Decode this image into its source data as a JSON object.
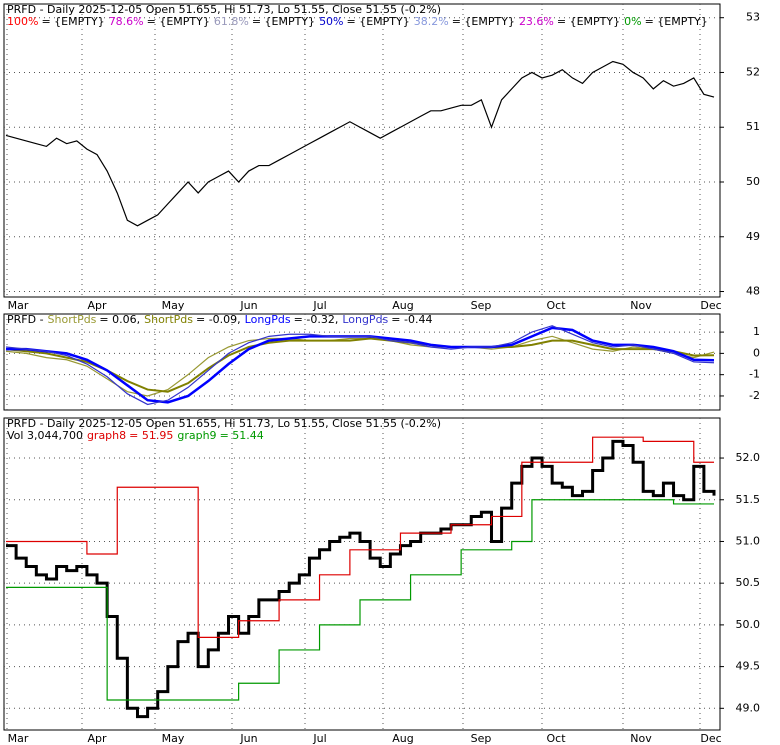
{
  "chart_data": [
    {
      "type": "line",
      "title": "PRFD - Daily 2025-12-05 Open 51.655, Hi 51.73, Lo 51.55, Close 51.55 (-0.2%)",
      "levels": [
        {
          "name": "100%",
          "label": "= {EMPTY}",
          "color": "#ff0000"
        },
        {
          "name": "78.6%",
          "label": "= {EMPTY}",
          "color": "#cc00cc"
        },
        {
          "name": "61.8%",
          "label": "= {EMPTY}",
          "color": "#9999bb"
        },
        {
          "name": "50%",
          "label": "= {EMPTY}",
          "color": "#0000cc"
        },
        {
          "name": "38.2%",
          "label": "= {EMPTY}",
          "color": "#8899dd"
        },
        {
          "name": "23.6%",
          "label": "= {EMPTY}",
          "color": "#cc00cc"
        },
        {
          "name": "0%",
          "label": "= {EMPTY}",
          "color": "#009900"
        }
      ],
      "x_labels": [
        "Mar",
        "Apr",
        "May",
        "Jun",
        "Jul",
        "Aug",
        "Sep",
        "Oct",
        "Nov",
        "Dec"
      ],
      "series": [
        {
          "color": "#000000",
          "values": [
            50.85,
            50.8,
            50.75,
            50.7,
            50.65,
            50.8,
            50.7,
            50.75,
            50.6,
            50.5,
            50.2,
            49.8,
            49.3,
            49.2,
            49.3,
            49.4,
            49.6,
            49.8,
            50.0,
            49.8,
            50.0,
            50.1,
            50.2,
            50.0,
            50.2,
            50.3,
            50.3,
            50.4,
            50.5,
            50.6,
            50.7,
            50.8,
            50.9,
            51.0,
            51.1,
            51.0,
            50.9,
            50.8,
            50.9,
            51.0,
            51.1,
            51.2,
            51.3,
            51.3,
            51.35,
            51.4,
            51.4,
            51.5,
            51.0,
            51.5,
            51.7,
            51.9,
            52.0,
            51.9,
            51.95,
            52.05,
            51.9,
            51.8,
            52.0,
            52.1,
            52.2,
            52.15,
            52.0,
            51.9,
            51.7,
            51.85,
            51.75,
            51.8,
            51.9,
            51.6,
            51.55
          ]
        }
      ],
      "ylim": [
        47.9,
        53.25
      ],
      "yticks": [
        48,
        49,
        50,
        51,
        52,
        53
      ],
      "grid": true
    },
    {
      "type": "line",
      "title": "PRFD -",
      "series": [
        {
          "name": "ShortPds",
          "label": "= 0.06,",
          "color": "#999933",
          "values": [
            0.1,
            0.0,
            -0.2,
            -0.3,
            -0.6,
            -1.2,
            -1.8,
            -2.0,
            -1.7,
            -1.0,
            -0.2,
            0.3,
            0.6,
            0.7,
            0.7,
            0.6,
            0.6,
            0.7,
            0.7,
            0.6,
            0.4,
            0.3,
            0.3,
            0.3,
            0.2,
            0.3,
            0.6,
            0.8,
            0.5,
            0.2,
            0.1,
            0.3,
            0.2,
            0.0,
            -0.2,
            0.06
          ]
        },
        {
          "name": "ShortPds",
          "label": "= -0.09,",
          "color": "#808000",
          "values": [
            0.2,
            0.1,
            0.0,
            -0.2,
            -0.4,
            -0.8,
            -1.3,
            -1.7,
            -1.8,
            -1.4,
            -0.7,
            -0.1,
            0.3,
            0.5,
            0.6,
            0.6,
            0.6,
            0.6,
            0.7,
            0.6,
            0.5,
            0.4,
            0.3,
            0.3,
            0.3,
            0.3,
            0.4,
            0.6,
            0.6,
            0.4,
            0.2,
            0.2,
            0.2,
            0.1,
            -0.1,
            -0.09
          ]
        },
        {
          "name": "LongPds",
          "label": "= -0.32,",
          "color": "#0000ff",
          "values": [
            0.2,
            0.2,
            0.1,
            0.0,
            -0.3,
            -0.8,
            -1.5,
            -2.2,
            -2.3,
            -2.0,
            -1.3,
            -0.5,
            0.2,
            0.6,
            0.7,
            0.8,
            0.8,
            0.8,
            0.8,
            0.7,
            0.6,
            0.4,
            0.3,
            0.3,
            0.3,
            0.4,
            0.8,
            1.2,
            1.1,
            0.6,
            0.4,
            0.4,
            0.3,
            0.1,
            -0.3,
            -0.32
          ]
        },
        {
          "name": "LongPds",
          "label": "= -0.44",
          "color": "#3333cc",
          "values": [
            0.3,
            0.2,
            0.1,
            -0.1,
            -0.5,
            -1.1,
            -1.9,
            -2.4,
            -2.2,
            -1.6,
            -0.8,
            0.0,
            0.5,
            0.8,
            0.9,
            0.9,
            0.8,
            0.8,
            0.8,
            0.6,
            0.5,
            0.3,
            0.2,
            0.3,
            0.3,
            0.5,
            1.0,
            1.3,
            0.9,
            0.5,
            0.3,
            0.4,
            0.2,
            0.0,
            -0.4,
            -0.44
          ]
        }
      ],
      "ylim": [
        -2.66,
        1.85
      ],
      "yticks": [
        1,
        0,
        -1,
        -2
      ],
      "grid": true
    },
    {
      "type": "line",
      "step": true,
      "title": "PRFD - Daily 2025-12-05 Open 51.655, Hi 51.73, Lo 51.55, Close 51.55 (-0.2%)",
      "volume_label": "Vol 3,044,700",
      "x_labels": [
        "Mar",
        "Apr",
        "May",
        "Jun",
        "Jul",
        "Aug",
        "Sep",
        "Oct",
        "Nov",
        "Dec"
      ],
      "series": [
        {
          "color": "#000000",
          "values": [
            50.95,
            50.8,
            50.7,
            50.6,
            50.55,
            50.7,
            50.65,
            50.7,
            50.6,
            50.5,
            50.1,
            49.6,
            49.0,
            48.9,
            49.0,
            49.2,
            49.5,
            49.8,
            49.9,
            49.5,
            49.7,
            49.9,
            50.1,
            49.9,
            50.1,
            50.3,
            50.3,
            50.4,
            50.5,
            50.6,
            50.8,
            50.9,
            51.0,
            51.05,
            51.1,
            51.0,
            50.8,
            50.7,
            50.85,
            50.95,
            51.0,
            51.1,
            51.1,
            51.15,
            51.2,
            51.2,
            51.3,
            51.35,
            51.0,
            51.4,
            51.7,
            51.9,
            52.0,
            51.9,
            51.7,
            51.65,
            51.55,
            51.6,
            51.85,
            52.0,
            52.2,
            52.15,
            51.95,
            51.6,
            51.55,
            51.7,
            51.55,
            51.5,
            51.9,
            51.6,
            51.55
          ]
        },
        {
          "name": "graph8",
          "label": "= 51.95",
          "color": "#dd0000",
          "values": [
            51.0,
            51.0,
            51.0,
            51.0,
            51.0,
            51.0,
            51.0,
            51.0,
            51.0,
            50.85,
            50.85,
            50.85,
            51.65,
            51.65,
            51.65,
            51.65,
            51.65,
            51.65,
            51.65,
            51.65,
            49.85,
            49.85,
            49.85,
            49.85,
            50.05,
            50.05,
            50.05,
            50.05,
            50.3,
            50.3,
            50.3,
            50.3,
            50.6,
            50.6,
            50.6,
            50.9,
            50.9,
            50.9,
            50.9,
            50.9,
            51.1,
            51.1,
            51.1,
            51.1,
            51.1,
            51.2,
            51.2,
            51.2,
            51.2,
            51.3,
            51.3,
            51.3,
            51.95,
            51.95,
            51.95,
            51.95,
            51.95,
            51.95,
            51.95,
            52.25,
            52.25,
            52.25,
            52.25,
            52.25,
            52.2,
            52.2,
            52.2,
            52.2,
            52.2,
            51.95,
            51.95
          ]
        },
        {
          "name": "graph9",
          "label": "= 51.44",
          "color": "#009900",
          "values": [
            50.45,
            50.45,
            50.45,
            50.45,
            50.45,
            50.45,
            50.45,
            50.45,
            50.45,
            50.45,
            50.45,
            49.1,
            49.1,
            49.1,
            49.1,
            49.1,
            49.1,
            49.1,
            49.1,
            49.1,
            49.1,
            49.1,
            49.1,
            49.1,
            49.3,
            49.3,
            49.3,
            49.3,
            49.7,
            49.7,
            49.7,
            49.7,
            50.0,
            50.0,
            50.0,
            50.0,
            50.3,
            50.3,
            50.3,
            50.3,
            50.3,
            50.6,
            50.6,
            50.6,
            50.6,
            50.6,
            50.9,
            50.9,
            50.9,
            50.9,
            50.9,
            51.0,
            51.0,
            51.5,
            51.5,
            51.5,
            51.5,
            51.5,
            51.5,
            51.5,
            51.5,
            51.5,
            51.5,
            51.5,
            51.5,
            51.5,
            51.5,
            51.45,
            51.45,
            51.45,
            51.45
          ]
        }
      ],
      "ylim": [
        48.74,
        52.48
      ],
      "yticks": [
        {
          "value": 49,
          "label": "49.0"
        },
        49.5,
        {
          "value": 50,
          "label": "50.0"
        },
        50.5,
        {
          "value": 51,
          "label": "51.0"
        },
        51.5,
        {
          "value": 52,
          "label": "52.0"
        }
      ],
      "grid": true
    }
  ]
}
